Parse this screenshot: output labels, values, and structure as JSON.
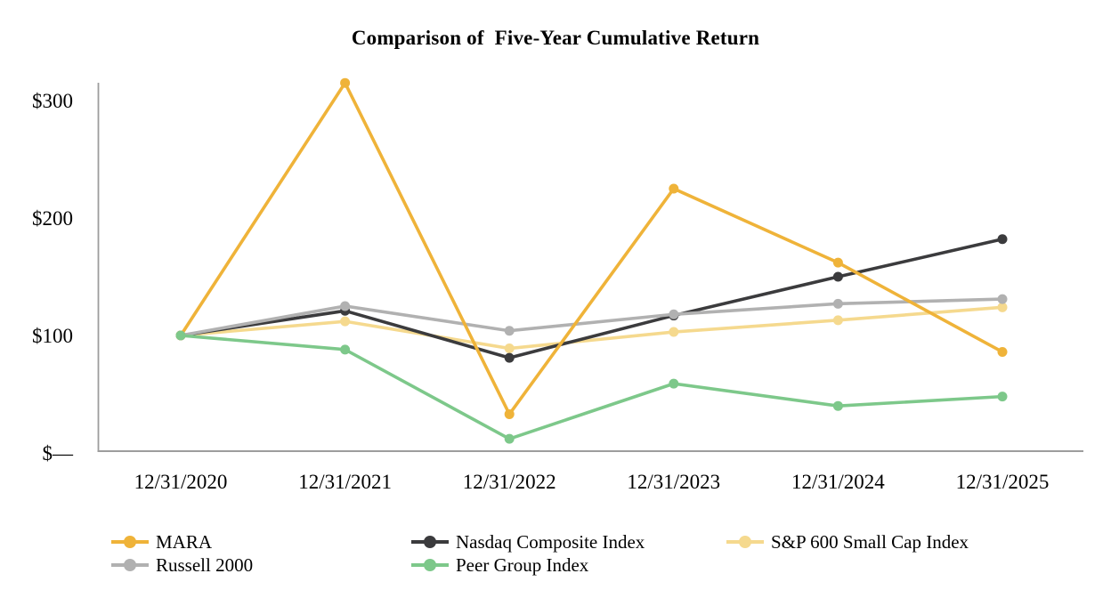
{
  "title": "Comparison of  Five-Year Cumulative Return",
  "chart_data": {
    "type": "line",
    "title": "Comparison of  Five-Year Cumulative Return",
    "x_categories": [
      "12/31/2020",
      "12/31/2021",
      "12/31/2022",
      "12/31/2023",
      "12/31/2024",
      "12/31/2025"
    ],
    "y_ticks": [
      {
        "label": "$300",
        "value": 300
      },
      {
        "label": "$200",
        "value": 200
      },
      {
        "label": "$100",
        "value": 100
      },
      {
        "label": "$—",
        "value": 0
      }
    ],
    "ylim": [
      0,
      315
    ],
    "grid": false,
    "axis_color": "#9D9D9D",
    "legend_position": "bottom",
    "series": [
      {
        "name": "MARA",
        "color": "#EFB339",
        "values": [
          100,
          315,
          33,
          225,
          162,
          86
        ]
      },
      {
        "name": "Nasdaq Composite Index",
        "color": "#3B3B3D",
        "values": [
          100,
          121,
          81,
          117,
          150,
          182
        ]
      },
      {
        "name": "S&P 600 Small Cap Index",
        "color": "#F5D98E",
        "values": [
          100,
          112,
          89,
          103,
          113,
          124
        ]
      },
      {
        "name": "Russell 2000",
        "color": "#B1B1B1",
        "values": [
          100,
          125,
          104,
          118,
          127,
          131
        ]
      },
      {
        "name": "Peer Group Index",
        "color": "#7DC88A",
        "values": [
          100,
          88,
          12,
          59,
          40,
          48
        ]
      }
    ],
    "draw_order": [
      "S&P 600 Small Cap Index",
      "Nasdaq Composite Index",
      "Russell 2000",
      "MARA",
      "Peer Group Index"
    ],
    "legend_rows": [
      [
        "MARA",
        "Nasdaq Composite Index",
        "S&P 600 Small Cap Index"
      ],
      [
        "Russell 2000",
        "Peer Group Index"
      ]
    ]
  }
}
